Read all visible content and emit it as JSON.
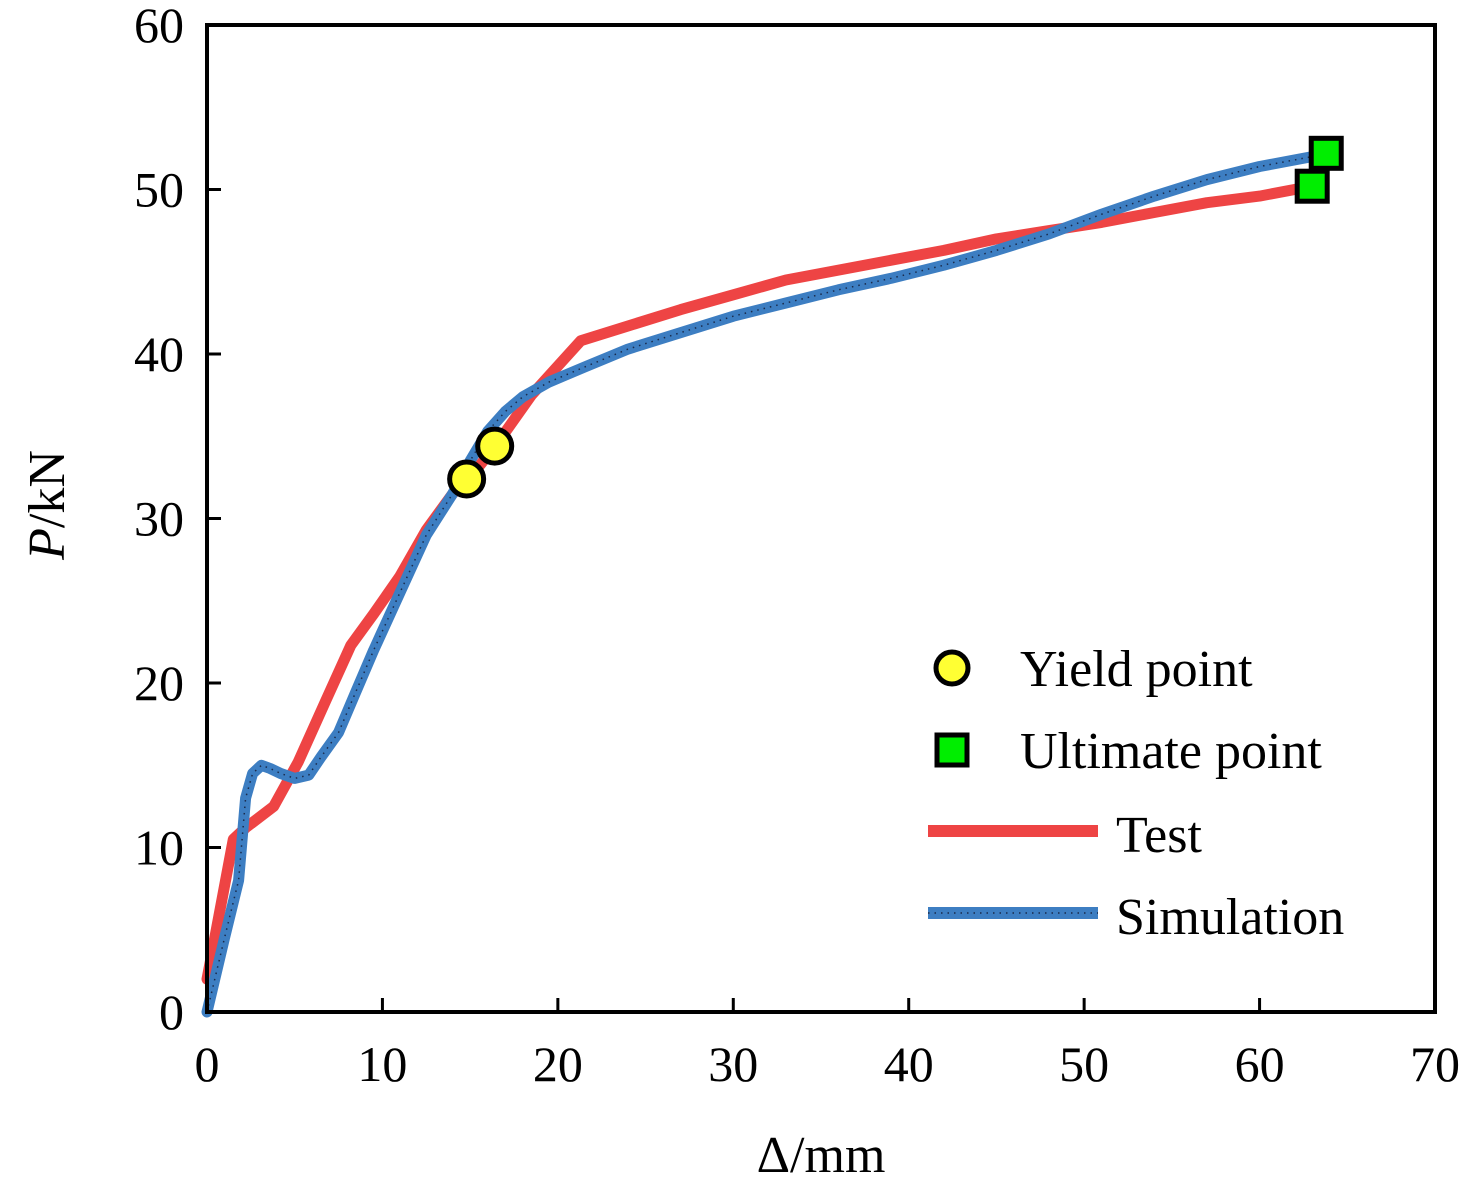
{
  "chart_data": {
    "type": "line",
    "title": "",
    "xlabel": "Δ/mm",
    "ylabel_italic": "P",
    "ylabel_unit": "/kN",
    "xlim": [
      0,
      70
    ],
    "ylim": [
      0,
      60
    ],
    "xticks": [
      0,
      10,
      20,
      30,
      40,
      50,
      60,
      70
    ],
    "yticks": [
      0,
      10,
      20,
      30,
      40,
      50,
      60
    ],
    "xtick_labels": [
      "0",
      "10",
      "20",
      "30",
      "40",
      "50",
      "60",
      "70"
    ],
    "ytick_labels": [
      "0",
      "10",
      "20",
      "30",
      "40",
      "50",
      "60"
    ],
    "grid": false,
    "legend_position": "bottom-right",
    "series": [
      {
        "name": "Test",
        "color": "#ee4444",
        "x": [
          0,
          1.5,
          2.2,
          3.8,
          5.2,
          6.8,
          8.2,
          9.5,
          11.0,
          12.5,
          14.0,
          15.0,
          16.5,
          18.5,
          21.3,
          24.0,
          27.0,
          30.0,
          33.0,
          36.0,
          39.0,
          42.0,
          45.0,
          48.0,
          51.0,
          54.0,
          57.0,
          60.0,
          63.0
        ],
        "y": [
          2,
          10.5,
          11.2,
          12.5,
          15.2,
          19.0,
          22.3,
          24.2,
          26.5,
          29.3,
          31.5,
          32.5,
          34.5,
          37.5,
          40.8,
          41.7,
          42.7,
          43.6,
          44.5,
          45.1,
          45.7,
          46.3,
          47.0,
          47.5,
          48.0,
          48.6,
          49.2,
          49.6,
          50.2
        ]
      },
      {
        "name": "Simulation",
        "color": "#3d7ec2",
        "x": [
          0,
          1.0,
          1.8,
          2.2,
          2.6,
          3.1,
          3.6,
          4.2,
          5.0,
          5.8,
          6.5,
          7.5,
          8.5,
          9.5,
          11.0,
          12.5,
          14.0,
          15.0,
          16.0,
          17.0,
          18.0,
          19.5,
          21.5,
          24.0,
          27.0,
          30.0,
          33.0,
          36.0,
          39.0,
          42.0,
          45.0,
          48.0,
          51.0,
          54.0,
          57.0,
          60.0,
          63.0,
          63.8
        ],
        "y": [
          0,
          4.5,
          8.0,
          13.0,
          14.5,
          15.0,
          14.8,
          14.5,
          14.2,
          14.4,
          15.5,
          17.0,
          19.5,
          22.0,
          25.5,
          29.0,
          31.5,
          33.5,
          35.3,
          36.5,
          37.4,
          38.3,
          39.2,
          40.3,
          41.3,
          42.3,
          43.1,
          43.9,
          44.6,
          45.4,
          46.3,
          47.3,
          48.5,
          49.6,
          50.6,
          51.4,
          52.0,
          52.2
        ]
      }
    ],
    "markers": [
      {
        "name": "Yield point",
        "shape": "circle",
        "color": "#ffff33",
        "points": [
          [
            14.8,
            32.4
          ],
          [
            16.4,
            34.4
          ]
        ]
      },
      {
        "name": "Ultimate point",
        "shape": "square",
        "color": "#00ee00",
        "points": [
          [
            63.0,
            50.2
          ],
          [
            63.8,
            52.2
          ]
        ]
      }
    ],
    "legend": [
      {
        "label": "Yield point",
        "kind": "circle"
      },
      {
        "label": "Ultimate point",
        "kind": "square"
      },
      {
        "label": "Test",
        "kind": "line-test"
      },
      {
        "label": "Simulation",
        "kind": "line-sim"
      }
    ]
  }
}
